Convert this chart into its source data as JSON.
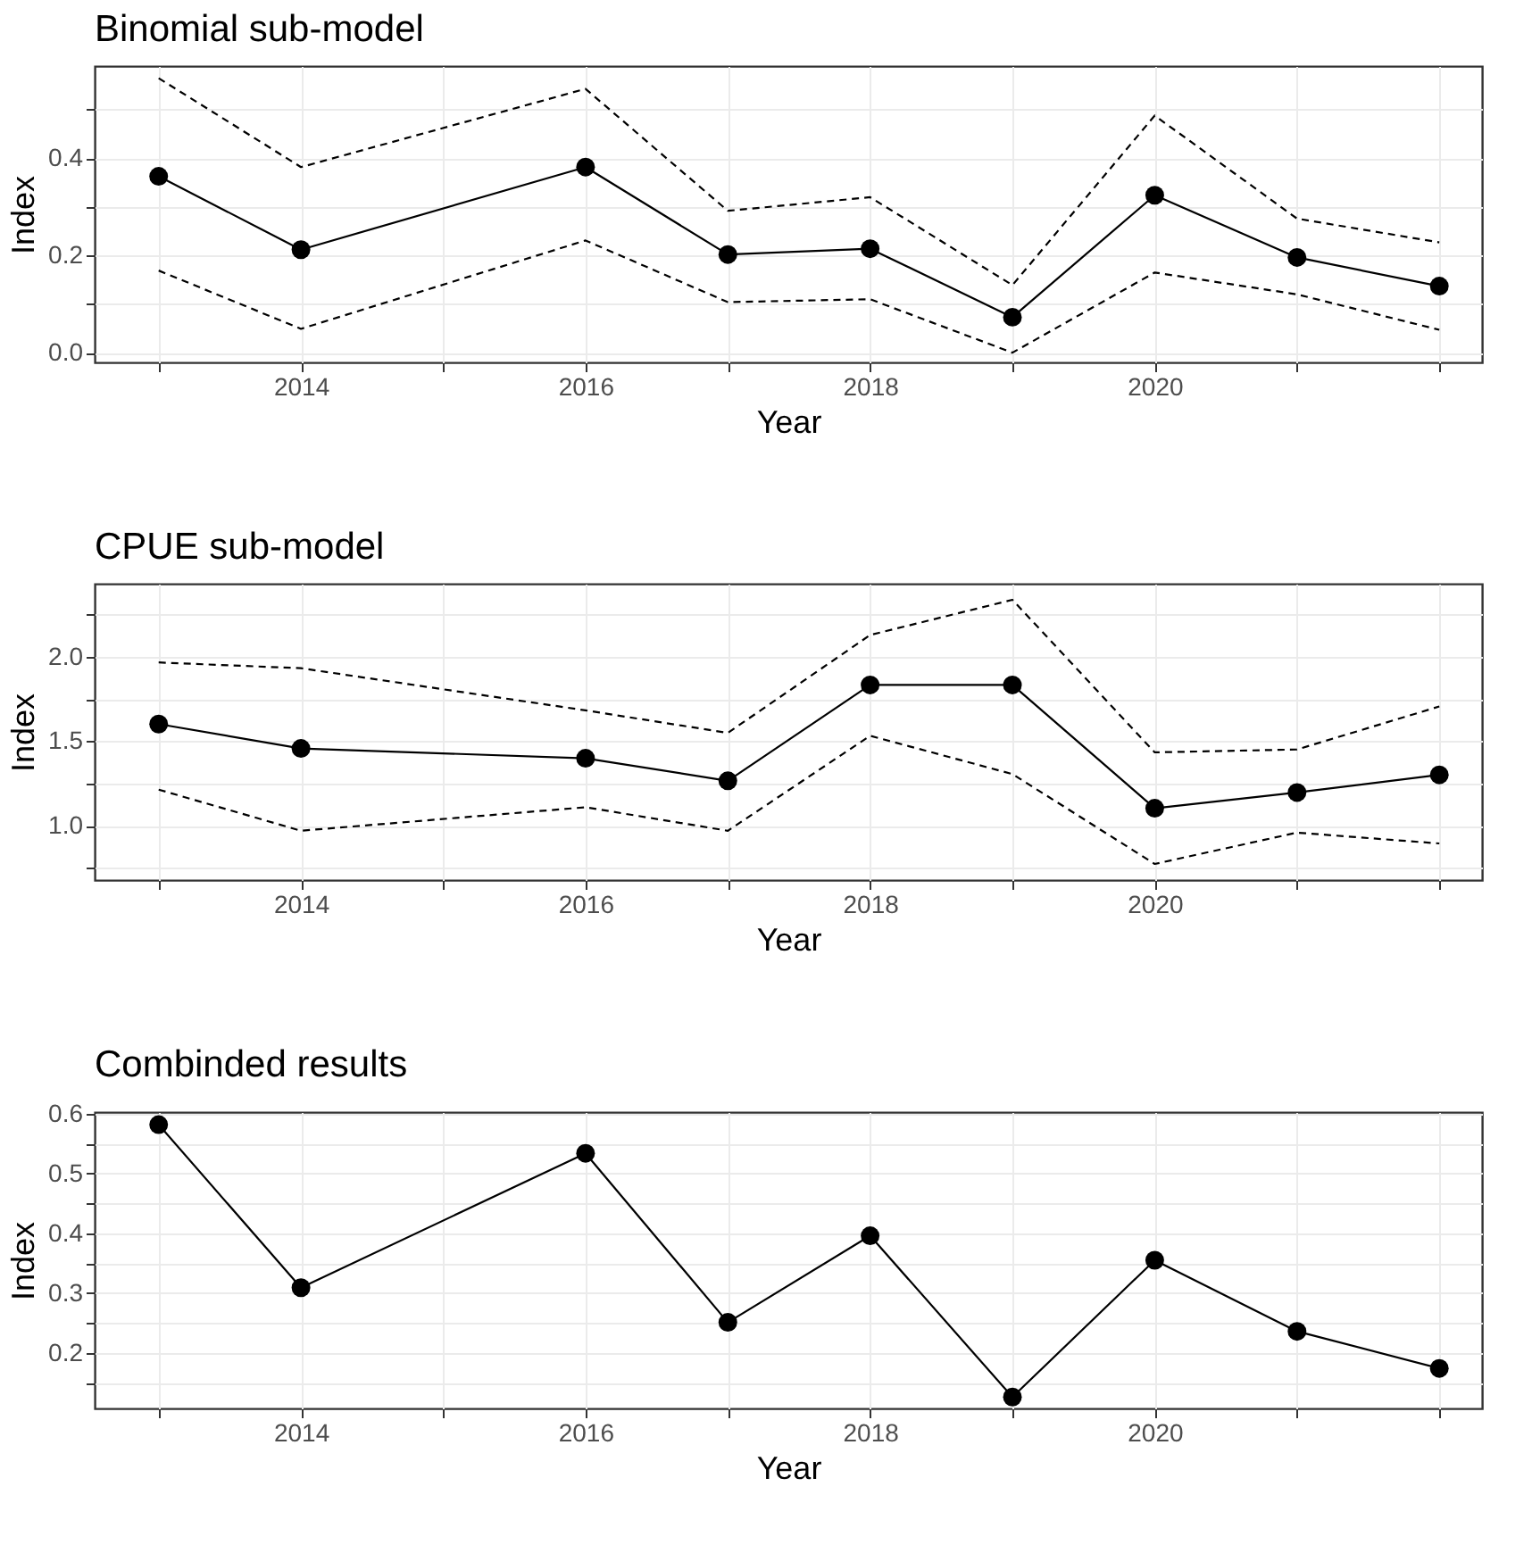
{
  "chart_data": [
    {
      "type": "line",
      "title": "Binomial sub-model",
      "xlabel": "Year",
      "ylabel": "Index",
      "x": [
        2013,
        2014,
        2016,
        2017,
        2018,
        2019,
        2020,
        2021,
        2022
      ],
      "series": [
        {
          "color": "#000000",
          "marker": "circle",
          "line_style": "solid",
          "values": [
            0.363,
            0.212,
            0.382,
            0.202,
            0.214,
            0.073,
            0.324,
            0.196,
            0.137
          ]
        },
        {
          "color": "#000000",
          "marker": "none",
          "line_style": "dashed",
          "values": [
            0.565,
            0.382,
            0.543,
            0.292,
            0.32,
            0.139,
            0.488,
            0.276,
            0.227
          ]
        },
        {
          "color": "#000000",
          "marker": "none",
          "line_style": "dashed",
          "values": [
            0.169,
            0.049,
            0.231,
            0.104,
            0.11,
            0.0,
            0.165,
            0.12,
            0.047
          ]
        }
      ],
      "xlim": [
        2012.55,
        2022.3
      ],
      "xticks": [
        {
          "value": 2013,
          "label": null
        },
        2014,
        {
          "value": 2015,
          "label": null
        },
        2016,
        {
          "value": 2017,
          "label": null
        },
        2018,
        {
          "value": 2019,
          "label": null
        },
        2020,
        {
          "value": 2021,
          "label": null
        },
        {
          "value": 2022,
          "label": null
        }
      ],
      "ylim": [
        -0.02,
        0.59
      ],
      "yticks": [
        {
          "value": 0,
          "label": "0.0"
        },
        {
          "value": 0.1,
          "label": null
        },
        0.2,
        {
          "value": 0.3,
          "label": null
        },
        0.4,
        {
          "value": 0.5,
          "label": null
        }
      ],
      "grid": true
    },
    {
      "type": "line",
      "title": "CPUE sub-model",
      "xlabel": "Year",
      "ylabel": "Index",
      "x": [
        2013,
        2014,
        2016,
        2017,
        2018,
        2019,
        2020,
        2021,
        2022
      ],
      "series": [
        {
          "color": "#000000",
          "marker": "circle",
          "line_style": "solid",
          "values": [
            1.601,
            1.457,
            1.399,
            1.266,
            1.832,
            1.832,
            1.104,
            1.197,
            1.301
          ]
        },
        {
          "color": "#000000",
          "marker": "none",
          "line_style": "dashed",
          "values": [
            1.965,
            1.931,
            1.682,
            1.549,
            2.127,
            2.335,
            1.434,
            1.451,
            1.705
          ]
        },
        {
          "color": "#000000",
          "marker": "none",
          "line_style": "dashed",
          "values": [
            1.214,
            0.971,
            1.11,
            0.971,
            1.532,
            1.306,
            0.775,
            0.96,
            0.896
          ]
        }
      ],
      "xlim": [
        2012.55,
        2022.3
      ],
      "xticks": [
        {
          "value": 2013,
          "label": null
        },
        2014,
        {
          "value": 2015,
          "label": null
        },
        2016,
        {
          "value": 2017,
          "label": null
        },
        2018,
        {
          "value": 2019,
          "label": null
        },
        2020,
        {
          "value": 2021,
          "label": null
        },
        {
          "value": 2022,
          "label": null
        }
      ],
      "ylim": [
        0.68,
        2.43
      ],
      "yticks": [
        {
          "value": 0.75,
          "label": null
        },
        {
          "value": 1,
          "label": "1.0"
        },
        {
          "value": 1.25,
          "label": null
        },
        1.5,
        {
          "value": 1.75,
          "label": null
        },
        {
          "value": 2,
          "label": "2.0"
        },
        {
          "value": 2.25,
          "label": null
        }
      ],
      "grid": true
    },
    {
      "type": "line",
      "title": "Combinded results",
      "xlabel": "Year",
      "ylabel": "Index",
      "x": [
        2013,
        2014,
        2016,
        2017,
        2018,
        2019,
        2020,
        2021,
        2022
      ],
      "series": [
        {
          "color": "#000000",
          "marker": "circle",
          "line_style": "solid",
          "values": [
            0.582,
            0.309,
            0.534,
            0.251,
            0.396,
            0.126,
            0.355,
            0.236,
            0.174
          ]
        }
      ],
      "xlim": [
        2012.55,
        2022.3
      ],
      "xticks": [
        {
          "value": 2013,
          "label": null
        },
        2014,
        {
          "value": 2015,
          "label": null
        },
        2016,
        {
          "value": 2017,
          "label": null
        },
        2018,
        {
          "value": 2019,
          "label": null
        },
        2020,
        {
          "value": 2021,
          "label": null
        },
        {
          "value": 2022,
          "label": null
        }
      ],
      "ylim": [
        0.107,
        0.603
      ],
      "yticks": [
        {
          "value": 0.15,
          "label": null
        },
        0.2,
        {
          "value": 0.25,
          "label": null
        },
        0.3,
        {
          "value": 0.35,
          "label": null
        },
        0.4,
        {
          "value": 0.45,
          "label": null
        },
        0.5,
        {
          "value": 0.55,
          "label": null
        },
        0.6
      ],
      "grid": true
    }
  ]
}
